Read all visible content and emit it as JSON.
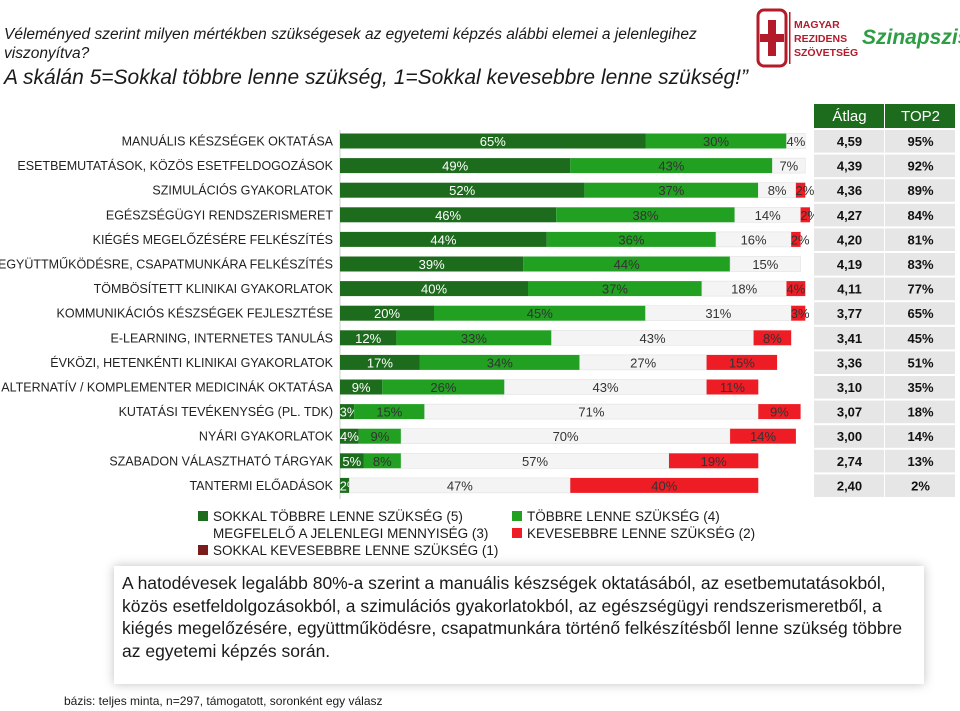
{
  "header": {
    "question": "Véleményed szerint milyen mértékben szükségesek az egyetemi képzés alábbi elemei a jelenlegihez viszonyítva?",
    "scale_note": "A skálán 5=Sokkal többre lenne szükség, 1=Sokkal kevesebbre lenne szükség!”"
  },
  "logos": {
    "mrsz_line1": "MAGYAR",
    "mrsz_line2": "REZIDENS",
    "mrsz_line3": "SZÖVETSÉG",
    "brand": "Szinapszis",
    "brand_color": "#2e9e45",
    "mrsz_color": "#b31b2a"
  },
  "chart_data": {
    "type": "bar",
    "stacked": true,
    "orientation": "horizontal",
    "categories": [
      "MANUÁLIS KÉSZSÉGEK OKTATÁSA",
      "ESETBEMUTATÁSOK, KÖZÖS ESETFELDOGOZÁSOK",
      "SZIMULÁCIÓS GYAKORLATOK",
      "EGÉSZSÉGÜGYI RENDSZERISMERET",
      "KIÉGÉS MEGELŐZÉSÉRE FELKÉSZÍTÉS",
      "EGYÜTTMŰKÖDÉSRE, CSAPATMUNKÁRA FELKÉSZÍTÉS",
      "TÖMBÖSÍTETT KLINIKAI GYAKORLATOK",
      "KOMMUNIKÁCIÓS KÉSZSÉGEK FEJLESZTÉSE",
      "E-LEARNING, INTERNETES TANULÁS",
      "ÉVKÖZI, HETENKÉNTI KLINIKAI GYAKORLATOK",
      "ALTERNATÍV / KOMPLEMENTER MEDICINÁK OKTATÁSA",
      "KUTATÁSI TEVÉKENYSÉG (PL. TDK)",
      "NYÁRI GYAKORLATOK",
      "SZABADON VÁLASZTHATÓ TÁRGYAK",
      "TANTERMI ELŐADÁSOK"
    ],
    "series": [
      {
        "name": "SOKKAL TÖBBRE LENNE SZÜKSÉG (5)",
        "color": "#1d6b1d",
        "values": [
          65,
          49,
          52,
          46,
          44,
          39,
          40,
          20,
          12,
          17,
          9,
          3,
          4,
          5,
          2
        ]
      },
      {
        "name": "TÖBBRE LENNE SZÜKSÉG (4)",
        "color": "#22a022",
        "values": [
          30,
          43,
          37,
          38,
          36,
          44,
          37,
          45,
          33,
          34,
          26,
          15,
          9,
          8,
          0
        ]
      },
      {
        "name": "MEGFELELŐ A JELENLEGI MENNYISÉG (3)",
        "color": "#f4f4f4",
        "values": [
          4,
          7,
          8,
          14,
          16,
          15,
          18,
          31,
          43,
          27,
          43,
          71,
          70,
          57,
          47
        ]
      },
      {
        "name": "KEVESEBBRE LENNE SZÜKSÉG (2)",
        "color": "#ee1c24",
        "values": [
          0,
          0,
          2,
          2,
          2,
          0,
          4,
          3,
          8,
          15,
          11,
          9,
          14,
          19,
          40
        ]
      },
      {
        "name": "SOKKAL KEVESEBBRE LENNE SZÜKSÉG (1)",
        "color": "#7b1c1c",
        "values": [
          0,
          0,
          0,
          0,
          0,
          0,
          0,
          0,
          0,
          0,
          0,
          0,
          0,
          0,
          0
        ]
      }
    ],
    "labels": [
      [
        "65%",
        "30%",
        "4%",
        "",
        ""
      ],
      [
        "49%",
        "43%",
        "7%",
        "",
        ""
      ],
      [
        "52%",
        "37%",
        "8%",
        "2%",
        ""
      ],
      [
        "46%",
        "38%",
        "14%",
        "2%",
        ""
      ],
      [
        "44%",
        "36%",
        "16%",
        "2%",
        ""
      ],
      [
        "39%",
        "44%",
        "15%",
        "",
        ""
      ],
      [
        "40%",
        "37%",
        "18%",
        "4%",
        ""
      ],
      [
        "20%",
        "45%",
        "31%",
        "3%",
        ""
      ],
      [
        "12%",
        "33%",
        "43%",
        "8%",
        ""
      ],
      [
        "17%",
        "34%",
        "27%",
        "15%",
        ""
      ],
      [
        "9%",
        "26%",
        "43%",
        "11%",
        ""
      ],
      [
        "3%",
        "15%",
        "71%",
        "9%",
        ""
      ],
      [
        "4%",
        "9%",
        "70%",
        "14%",
        ""
      ],
      [
        "5%",
        "8%",
        "57%",
        "19%",
        ""
      ],
      [
        "2%",
        "",
        "47%",
        "40%",
        ""
      ]
    ],
    "table": {
      "headers": [
        "Átlag",
        "TOP2"
      ],
      "header_bg": "#1d6b1d",
      "row_bg": "#e6e6e6",
      "rows": [
        [
          "4,59",
          "95%"
        ],
        [
          "4,39",
          "92%"
        ],
        [
          "4,36",
          "89%"
        ],
        [
          "4,27",
          "84%"
        ],
        [
          "4,20",
          "81%"
        ],
        [
          "4,19",
          "83%"
        ],
        [
          "4,11",
          "77%"
        ],
        [
          "3,77",
          "65%"
        ],
        [
          "3,41",
          "45%"
        ],
        [
          "3,36",
          "51%"
        ],
        [
          "3,10",
          "35%"
        ],
        [
          "3,07",
          "18%"
        ],
        [
          "3,00",
          "14%"
        ],
        [
          "2,74",
          "13%"
        ],
        [
          "2,40",
          "2%"
        ]
      ]
    },
    "xlim": [
      0,
      100
    ]
  },
  "legend": {
    "items": [
      "SOKKAL TÖBBRE LENNE SZÜKSÉG (5)",
      "TÖBBRE LENNE SZÜKSÉG (4)",
      "MEGFELELŐ A JELENLEGI MENNYISÉG (3)",
      "KEVESEBBRE LENNE SZÜKSÉG (2)",
      "SOKKAL KEVESEBBRE LENNE SZÜKSÉG (1)"
    ]
  },
  "summary": {
    "text": "A hatodévesek legalább 80%-a szerint a manuális készségek oktatásából, az esetbemutatásokból, közös esetfeldolgozásokból, a szimulációs gyakorlatokból, az egészségügyi rendszerismeretből, a kiégés megelőzésére, együttműködésre, csapatmunkára történő felkészítésből lenne szükség többre az egyetemi képzés során."
  },
  "footnote": "bázis: teljes minta, n=297, támogatott, soronként egy válasz"
}
